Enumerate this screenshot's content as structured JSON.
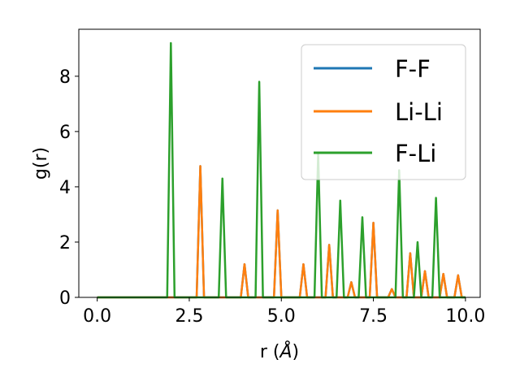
{
  "chart_data": {
    "type": "line",
    "xlabel_main": "r (",
    "xlabel_unit": "Å",
    "xlabel_close": ")",
    "ylabel": "g(r)",
    "xlim": [
      -0.5,
      10.4
    ],
    "ylim": [
      0,
      9.7
    ],
    "xticks": [
      0.0,
      2.5,
      5.0,
      7.5,
      10.0
    ],
    "xtick_labels": [
      "0.0",
      "2.5",
      "5.0",
      "7.5",
      "10.0"
    ],
    "yticks": [
      0,
      2,
      4,
      6,
      8
    ],
    "ytick_labels": [
      "0",
      "2",
      "4",
      "6",
      "8"
    ],
    "grid": false,
    "legend_position": "top-right",
    "peak_half_width": 0.1,
    "series": [
      {
        "name": "F-F",
        "color": "#1f77b4",
        "peaks": [
          [
            2.8,
            4.75
          ],
          [
            4.0,
            1.2
          ],
          [
            4.9,
            3.15
          ],
          [
            5.6,
            1.2
          ],
          [
            6.3,
            1.9
          ],
          [
            6.9,
            0.55
          ],
          [
            7.5,
            2.7
          ],
          [
            8.0,
            0.3
          ],
          [
            8.5,
            1.6
          ],
          [
            8.9,
            0.95
          ],
          [
            9.4,
            0.85
          ],
          [
            9.8,
            0.8
          ]
        ]
      },
      {
        "name": "Li-Li",
        "color": "#ff7f0e",
        "peaks": [
          [
            2.8,
            4.75
          ],
          [
            4.0,
            1.2
          ],
          [
            4.9,
            3.15
          ],
          [
            5.6,
            1.2
          ],
          [
            6.3,
            1.9
          ],
          [
            6.9,
            0.55
          ],
          [
            7.5,
            2.7
          ],
          [
            8.0,
            0.3
          ],
          [
            8.5,
            1.6
          ],
          [
            8.9,
            0.95
          ],
          [
            9.4,
            0.85
          ],
          [
            9.8,
            0.8
          ]
        ]
      },
      {
        "name": "F-Li",
        "color": "#2ca02c",
        "peaks": [
          [
            2.0,
            9.2
          ],
          [
            3.4,
            4.3
          ],
          [
            4.4,
            7.8
          ],
          [
            6.0,
            5.2
          ],
          [
            6.6,
            3.5
          ],
          [
            7.2,
            2.9
          ],
          [
            8.2,
            4.6
          ],
          [
            8.7,
            2.0
          ],
          [
            9.2,
            3.6
          ]
        ]
      }
    ],
    "x_start": 0.0,
    "x_end": 10.0
  }
}
